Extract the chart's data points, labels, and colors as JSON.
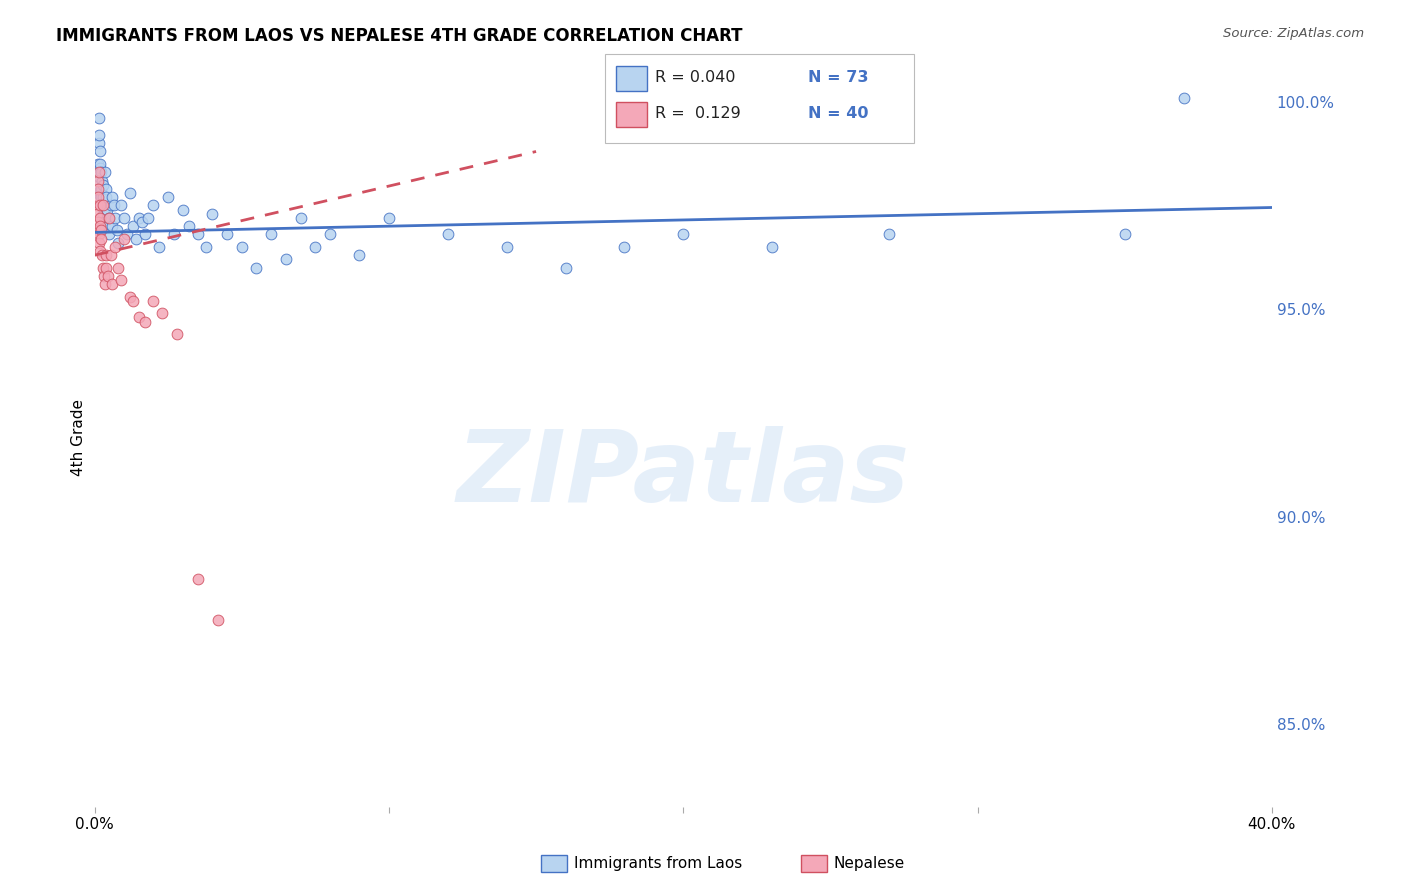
{
  "title": "IMMIGRANTS FROM LAOS VS NEPALESE 4TH GRADE CORRELATION CHART",
  "source": "Source: ZipAtlas.com",
  "ylabel": "4th Grade",
  "legend_blue_r": "R = 0.040",
  "legend_blue_n": "N = 73",
  "legend_pink_r": "R =  0.129",
  "legend_pink_n": "N = 40",
  "legend_label_blue": "Immigrants from Laos",
  "legend_label_pink": "Nepalese",
  "blue_color": "#b8d4f0",
  "blue_line_color": "#4472c4",
  "pink_color": "#f4a8b8",
  "pink_line_color": "#d05060",
  "watermark": "ZIPatlas",
  "blue_dots_x": [
    0.0008,
    0.001,
    0.0012,
    0.0013,
    0.0015,
    0.0015,
    0.0016,
    0.0017,
    0.0018,
    0.0019,
    0.002,
    0.0021,
    0.0022,
    0.0023,
    0.0024,
    0.0025,
    0.0027,
    0.0028,
    0.003,
    0.0032,
    0.0033,
    0.0035,
    0.0038,
    0.004,
    0.0042,
    0.0045,
    0.0048,
    0.005,
    0.0055,
    0.0058,
    0.006,
    0.0065,
    0.007,
    0.0075,
    0.008,
    0.009,
    0.01,
    0.011,
    0.012,
    0.013,
    0.014,
    0.015,
    0.016,
    0.017,
    0.018,
    0.02,
    0.022,
    0.025,
    0.027,
    0.03,
    0.032,
    0.035,
    0.038,
    0.04,
    0.045,
    0.05,
    0.055,
    0.06,
    0.065,
    0.07,
    0.075,
    0.08,
    0.09,
    0.1,
    0.12,
    0.14,
    0.16,
    0.18,
    0.2,
    0.23,
    0.27,
    0.35,
    0.37
  ],
  "blue_dots_y": [
    0.98,
    0.978,
    0.982,
    0.985,
    0.99,
    0.992,
    0.996,
    0.984,
    0.988,
    0.978,
    0.985,
    0.983,
    0.979,
    0.977,
    0.981,
    0.975,
    0.973,
    0.98,
    0.977,
    0.974,
    0.971,
    0.983,
    0.979,
    0.977,
    0.974,
    0.97,
    0.968,
    0.972,
    0.975,
    0.97,
    0.977,
    0.975,
    0.972,
    0.969,
    0.966,
    0.975,
    0.972,
    0.968,
    0.978,
    0.97,
    0.967,
    0.972,
    0.971,
    0.968,
    0.972,
    0.975,
    0.965,
    0.977,
    0.968,
    0.974,
    0.97,
    0.968,
    0.965,
    0.973,
    0.968,
    0.965,
    0.96,
    0.968,
    0.962,
    0.972,
    0.965,
    0.968,
    0.963,
    0.972,
    0.968,
    0.965,
    0.96,
    0.965,
    0.968,
    0.965,
    0.968,
    0.968,
    1.001
  ],
  "pink_dots_x": [
    0.0008,
    0.0009,
    0.001,
    0.0011,
    0.0012,
    0.0013,
    0.0013,
    0.0014,
    0.0015,
    0.0016,
    0.0017,
    0.0018,
    0.0019,
    0.002,
    0.0022,
    0.0023,
    0.0025,
    0.0027,
    0.003,
    0.0032,
    0.0035,
    0.0038,
    0.004,
    0.0045,
    0.005,
    0.0055,
    0.006,
    0.007,
    0.008,
    0.009,
    0.01,
    0.012,
    0.013,
    0.015,
    0.017,
    0.02,
    0.023,
    0.028,
    0.035,
    0.042
  ],
  "pink_dots_y": [
    0.975,
    0.973,
    0.981,
    0.971,
    0.979,
    0.969,
    0.977,
    0.983,
    0.968,
    0.966,
    0.975,
    0.964,
    0.972,
    0.97,
    0.969,
    0.967,
    0.963,
    0.96,
    0.975,
    0.958,
    0.956,
    0.963,
    0.96,
    0.958,
    0.972,
    0.963,
    0.956,
    0.965,
    0.96,
    0.957,
    0.967,
    0.953,
    0.952,
    0.948,
    0.947,
    0.952,
    0.949,
    0.944,
    0.885,
    0.875
  ],
  "blue_trend_x": [
    0.0,
    0.4
  ],
  "blue_trend_y": [
    0.9685,
    0.9745
  ],
  "pink_trend_x": [
    0.0,
    0.15
  ],
  "pink_trend_y": [
    0.963,
    0.988
  ],
  "xlim": [
    0.0,
    0.4
  ],
  "ylim": [
    0.83,
    1.008
  ],
  "y_ticks": [
    0.85,
    0.9,
    0.95,
    1.0
  ],
  "y_tick_labels": [
    "85.0%",
    "90.0%",
    "95.0%",
    "100.0%"
  ],
  "x_ticks": [
    0.0,
    0.1,
    0.2,
    0.3,
    0.4
  ],
  "x_tick_labels": [
    "0.0%",
    "",
    "",
    "",
    "40.0%"
  ],
  "background_color": "#ffffff",
  "grid_color": "#dddddd"
}
